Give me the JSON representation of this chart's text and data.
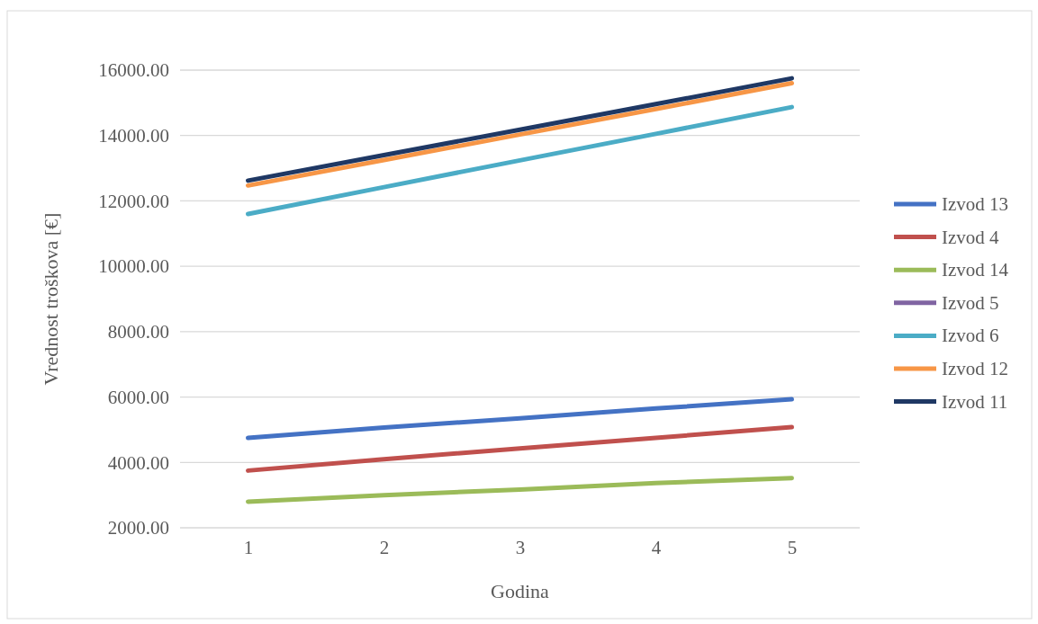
{
  "chart_data": {
    "type": "line",
    "xlabel": "Godina",
    "ylabel": "Vrednost troškova [€]",
    "categories": [
      "1",
      "2",
      "3",
      "4",
      "5"
    ],
    "ylim": [
      2000,
      16000
    ],
    "yticks": [
      {
        "value": 2000,
        "label": "2000.00"
      },
      {
        "value": 4000,
        "label": "4000.00"
      },
      {
        "value": 6000,
        "label": "6000.00"
      },
      {
        "value": 8000,
        "label": "8000.00"
      },
      {
        "value": 10000,
        "label": "10000.00"
      },
      {
        "value": 12000,
        "label": "12000.00"
      },
      {
        "value": 14000,
        "label": "14000.00"
      },
      {
        "value": 16000,
        "label": "16000.00"
      }
    ],
    "grid": "y",
    "legend": "right",
    "marker": "none",
    "line_style": "solid",
    "series": [
      {
        "name": "Izvod 13",
        "color": "#4472c4",
        "values": [
          4750,
          5070,
          5350,
          5650,
          5930
        ]
      },
      {
        "name": "Izvod 4",
        "color": "#c0504d",
        "values": [
          3750,
          4100,
          4430,
          4750,
          5080
        ]
      },
      {
        "name": "Izvod 14",
        "color": "#9bbb59",
        "values": [
          2800,
          3000,
          3170,
          3370,
          3520
        ]
      },
      {
        "name": "Izvod 5",
        "color": "#8064a2",
        "values": [
          null,
          null,
          null,
          null,
          null
        ]
      },
      {
        "name": "Izvod 6",
        "color": "#4bacc6",
        "values": [
          11600,
          12420,
          13240,
          14050,
          14870
        ]
      },
      {
        "name": "Izvod 12",
        "color": "#f79646",
        "values": [
          12470,
          13250,
          14030,
          14810,
          15600
        ]
      },
      {
        "name": "Izvod 11",
        "color": "#1f3864",
        "values": [
          12620,
          13400,
          14180,
          14960,
          15750
        ]
      }
    ]
  }
}
